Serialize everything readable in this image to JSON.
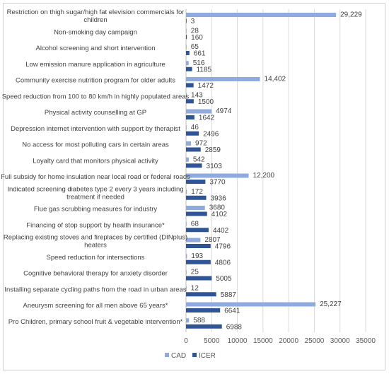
{
  "chart_data": {
    "type": "bar",
    "orientation": "horizontal",
    "categories": [
      "Restriction on thigh sugar/high fat elevision commercials for children",
      "Non-smoking day campaign",
      "Alcohol screening and short intervention",
      "Low emission manure application in agriculture",
      "Community exercise nutrition program for older adults",
      "Speed reduction from 100 to 80 km/h in highly populated areas",
      "Physical activity  counselling at GP",
      "Depression internet intervention with support by therapist",
      "No access for most polluting cars in certain areas",
      "Loyalty card that monitors physical activity",
      "Full subsidy for home insulation near local road or federal roads",
      "Indicated screening diabetes type 2 every 3 years including treatment if needed",
      "Flue gas scrubbing measures for industry",
      "Financing of stop support by health insurance*",
      "Replacing existing stoves and fireplaces by certified (DINplus) heaters",
      "Speed reduction for intersections",
      "Cognitive behavioral therapy for anxiety disorder",
      "Installing separate cycling paths from the road in urban areas",
      "Aneurysm screening for all men above 65 years*",
      "Pro Children, primary school fruit & vegetable intervention*"
    ],
    "category_lines": [
      [
        "Restriction on thigh sugar/high fat elevision commercials for",
        "children"
      ],
      [
        "Non-smoking day campaign"
      ],
      [
        "Alcohol screening and short intervention"
      ],
      [
        "Low emission manure application in agriculture"
      ],
      [
        "Community exercise nutrition program for older adults"
      ],
      [
        "Speed reduction from 100 to 80 km/h in highly populated areas"
      ],
      [
        "Physical activity  counselling at GP"
      ],
      [
        "Depression internet intervention with support by therapist"
      ],
      [
        "No access for most polluting cars in certain areas"
      ],
      [
        "Loyalty card that monitors physical activity"
      ],
      [
        "Full subsidy for home insulation near local road or federal roads"
      ],
      [
        "Indicated screening diabetes type 2 every 3 years including",
        "treatment if needed"
      ],
      [
        "Flue gas scrubbing measures for industry"
      ],
      [
        "Financing of stop support by health insurance*"
      ],
      [
        "Replacing existing stoves and fireplaces by certified (DINplus)",
        "heaters"
      ],
      [
        "Speed reduction for intersections"
      ],
      [
        "Cognitive behavioral therapy for anxiety disorder"
      ],
      [
        "Installing separate cycling paths from the road in urban areas"
      ],
      [
        "Aneurysm screening for all men above 65 years*"
      ],
      [
        "Pro Children, primary school fruit & vegetable intervention*"
      ]
    ],
    "series": [
      {
        "name": "CAD",
        "color": "#8faadc",
        "values": [
          29229,
          28,
          65,
          516,
          14402,
          143,
          4974,
          46,
          972,
          542,
          12200,
          172,
          3680,
          68,
          2807,
          193,
          25,
          12,
          25227,
          588
        ],
        "labels": [
          "29,229",
          "28",
          "65",
          "516",
          "14,402",
          "143",
          "4974",
          "46",
          "972",
          "542",
          "12,200",
          "172",
          "3680",
          "68",
          "2807",
          "193",
          "25",
          "12",
          "25,227",
          "588"
        ]
      },
      {
        "name": "ICER",
        "color": "#2f5597",
        "values": [
          3,
          160,
          661,
          1185,
          1472,
          1500,
          1642,
          2496,
          2859,
          3103,
          3770,
          3936,
          4102,
          4402,
          4796,
          4806,
          5005,
          5887,
          6641,
          6988
        ],
        "labels": [
          "3",
          "160",
          "661",
          "1185",
          "1472",
          "1500",
          "1642",
          "2496",
          "2859",
          "3103",
          "3770",
          "3936",
          "4102",
          "4402",
          "4796",
          "4806",
          "5005",
          "5887",
          "6641",
          "6988"
        ]
      }
    ],
    "x_ticks": [
      0,
      5000,
      10000,
      15000,
      20000,
      25000,
      30000,
      35000
    ],
    "xlim": [
      0,
      35000
    ],
    "title": "",
    "xlabel": "",
    "ylabel": "",
    "grid": true,
    "legend_position": "bottom-left"
  }
}
